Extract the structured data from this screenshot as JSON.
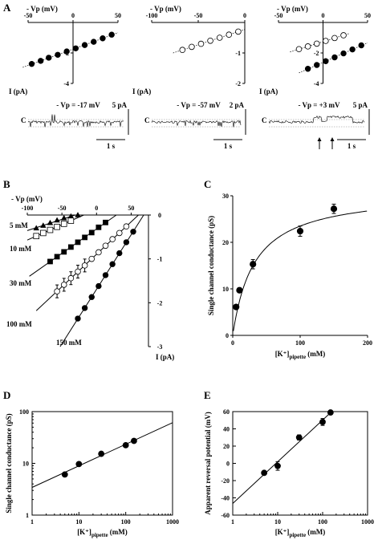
{
  "panel_labels": {
    "A": "A",
    "B": "B",
    "C": "C",
    "D": "D",
    "E": "E"
  },
  "panel_a": {
    "plots": [
      {
        "xlabel": "- Vp (mV)",
        "ylabel": "I (pA)",
        "xticks": [
          "-50",
          "0",
          "50"
        ],
        "yticks": [
          "-2",
          "-4"
        ],
        "marker": "filled"
      },
      {
        "xlabel": "- Vp (mV)",
        "ylabel": "I (pA)",
        "xticks": [
          "-100",
          "-50",
          "0"
        ],
        "yticks": [
          "-1",
          "-2"
        ],
        "marker": "open"
      },
      {
        "xlabel": "- Vp (mV)",
        "ylabel": "I (pA)",
        "xticks": [
          "-50",
          "0",
          "50"
        ],
        "yticks": [
          "-2",
          "-4"
        ],
        "marker": "both"
      }
    ],
    "traces": [
      {
        "vp": "- Vp = -17 mV",
        "scale_y": "5 pA",
        "scale_x": "1 s",
        "c": "C"
      },
      {
        "vp": "- Vp = -57 mV",
        "scale_y": "2 pA",
        "scale_x": "1 s",
        "c": "C"
      },
      {
        "vp": "- Vp = +3 mV",
        "scale_y": "5 pA",
        "scale_x": "1 s",
        "c": "C"
      }
    ]
  },
  "chart_data": [
    {
      "panel": "A1",
      "type": "scatter",
      "xlabel": "- Vp (mV)",
      "ylabel": "I (pA)",
      "xlim": [
        -50,
        50
      ],
      "ylim": [
        -4,
        0
      ],
      "series": [
        {
          "marker": "filled",
          "x": [
            -46,
            -36,
            -27,
            -17,
            -7,
            3,
            13,
            23,
            33,
            43
          ],
          "y": [
            -2.72,
            -2.52,
            -2.31,
            -2.12,
            -1.9,
            -1.7,
            -1.48,
            -1.27,
            -1.04,
            -0.8
          ]
        }
      ]
    },
    {
      "panel": "A2",
      "type": "scatter",
      "xlabel": "- Vp (mV)",
      "ylabel": "I (pA)",
      "xlim": [
        -100,
        0
      ],
      "ylim": [
        -2,
        0
      ],
      "series": [
        {
          "marker": "open",
          "x": [
            -67,
            -57,
            -47,
            -37,
            -27,
            -17,
            -7
          ],
          "y": [
            -0.9,
            -0.8,
            -0.7,
            -0.6,
            -0.5,
            -0.4,
            -0.3
          ]
        }
      ]
    },
    {
      "panel": "A3",
      "type": "scatter",
      "xlabel": "- Vp (mV)",
      "ylabel": "I (pA)",
      "xlim": [
        -50,
        50
      ],
      "ylim": [
        -4,
        0
      ],
      "series": [
        {
          "marker": "open",
          "x": [
            -27,
            -17,
            -7,
            3,
            13,
            23
          ],
          "y": [
            -1.75,
            -1.57,
            -1.39,
            -1.21,
            -1.02,
            -0.84
          ]
        },
        {
          "marker": "filled",
          "x": [
            -17,
            -7,
            3,
            13,
            23,
            33,
            43
          ],
          "y": [
            -3.04,
            -2.79,
            -2.54,
            -2.29,
            -2.03,
            -1.77,
            -1.5
          ]
        }
      ]
    },
    {
      "panel": "B",
      "type": "scatter",
      "xlabel": "- Vp (mV)",
      "ylabel": "I (pA)",
      "xlim": [
        -100,
        75
      ],
      "ylim": [
        -3,
        0
      ],
      "xticks": [
        "-100",
        "-50",
        "0",
        "50"
      ],
      "yticks": [
        "0",
        "-1",
        "-2",
        "-3"
      ],
      "series": [
        {
          "name": "5 mM",
          "marker": "triangle",
          "x": [
            -87,
            -77,
            -67,
            -57,
            -47,
            -37,
            -27
          ],
          "y": [
            -0.3,
            -0.24,
            -0.18,
            -0.12,
            -0.07,
            -0.03,
            0
          ]
        },
        {
          "name": "10 mM",
          "marker": "open-square",
          "x": [
            -87,
            -77,
            -67,
            -57,
            -47,
            -37
          ],
          "y": [
            -0.48,
            -0.41,
            -0.34,
            -0.27,
            -0.2,
            -0.13
          ]
        },
        {
          "name": "30 mM",
          "marker": "filled-square",
          "x": [
            -67,
            -57,
            -47,
            -37,
            -27,
            -17,
            -7,
            3,
            13
          ],
          "y": [
            -1.06,
            -0.95,
            -0.84,
            -0.73,
            -0.62,
            -0.51,
            -0.4,
            -0.28,
            -0.17
          ]
        },
        {
          "name": "100 mM",
          "marker": "open-circle",
          "x": [
            -57,
            -47,
            -37,
            -27,
            -17,
            -7,
            3,
            13,
            23,
            33,
            43
          ],
          "y": [
            -1.74,
            -1.59,
            -1.44,
            -1.29,
            -1.15,
            -1.0,
            -0.85,
            -0.7,
            -0.55,
            -0.41,
            -0.26
          ]
        },
        {
          "name": "150 mM",
          "marker": "filled-circle",
          "x": [
            -27,
            -17,
            -7,
            3,
            13,
            23,
            33,
            43,
            53
          ],
          "y": [
            -2.36,
            -2.12,
            -1.87,
            -1.62,
            -1.37,
            -1.12,
            -0.87,
            -0.62,
            -0.38
          ]
        }
      ]
    },
    {
      "panel": "C",
      "type": "scatter",
      "xlabel": "[K+]pipette (mM)",
      "ylabel": "Single channel conductance (pS)",
      "xlim": [
        0,
        200
      ],
      "ylim": [
        0,
        30
      ],
      "xticks": [
        "0",
        "100",
        "200"
      ],
      "yticks": [
        "0",
        "10",
        "20",
        "30"
      ],
      "series": [
        {
          "marker": "filled",
          "x": [
            5,
            10,
            30,
            100,
            150
          ],
          "y": [
            6.1,
            9.7,
            15.3,
            22.4,
            27.2
          ],
          "err": [
            0.5,
            0.5,
            1.0,
            1.1,
            1.0
          ]
        }
      ]
    },
    {
      "panel": "D",
      "type": "scatter",
      "xlabel": "[K+]pipette (mM)",
      "ylabel": "Single channel conductance (pS)",
      "xscale": "log",
      "yscale": "log",
      "xlim": [
        1,
        1000
      ],
      "ylim": [
        1,
        100
      ],
      "xticks": [
        "1",
        "10",
        "100",
        "1000"
      ],
      "yticks": [
        "1",
        "10",
        "100"
      ],
      "series": [
        {
          "marker": "filled",
          "x": [
            5,
            10,
            30,
            100,
            150
          ],
          "y": [
            6.1,
            9.7,
            15.3,
            22.4,
            27.2
          ]
        }
      ]
    },
    {
      "panel": "E",
      "type": "scatter",
      "xlabel": "[K+]pipette (mM)",
      "ylabel": "Apparent reversal potential (mV)",
      "xscale": "log",
      "xlim": [
        1,
        1000
      ],
      "ylim": [
        -60,
        60
      ],
      "xticks": [
        "1",
        "10",
        "100",
        "1000"
      ],
      "yticks": [
        "-60",
        "-40",
        "-20",
        "0",
        "20",
        "40",
        "60"
      ],
      "series": [
        {
          "marker": "filled",
          "x": [
            5,
            10,
            30,
            100,
            150
          ],
          "y": [
            -11,
            -3,
            30,
            48,
            59
          ],
          "err": [
            2,
            5,
            3,
            4,
            1
          ]
        }
      ]
    }
  ],
  "labels": {
    "b_xlabel": "- Vp (mV)",
    "b_ylabel": "I (pA)",
    "c_xlabel": "[K⁺]",
    "c_xsub": "pipette",
    "c_xunit": " (mM)",
    "c_ylabel": "Single channel conductance (pS)",
    "d_xlabel": "[K⁺]",
    "d_xsub": "pipette",
    "d_xunit": " (mM)",
    "d_ylabel": "Single channel conductance (pS)",
    "e_xlabel": "[K⁺]",
    "e_xsub": "pipette",
    "e_xunit": " (mM)",
    "e_ylabel": "Apparent reversal potential (mV)"
  }
}
